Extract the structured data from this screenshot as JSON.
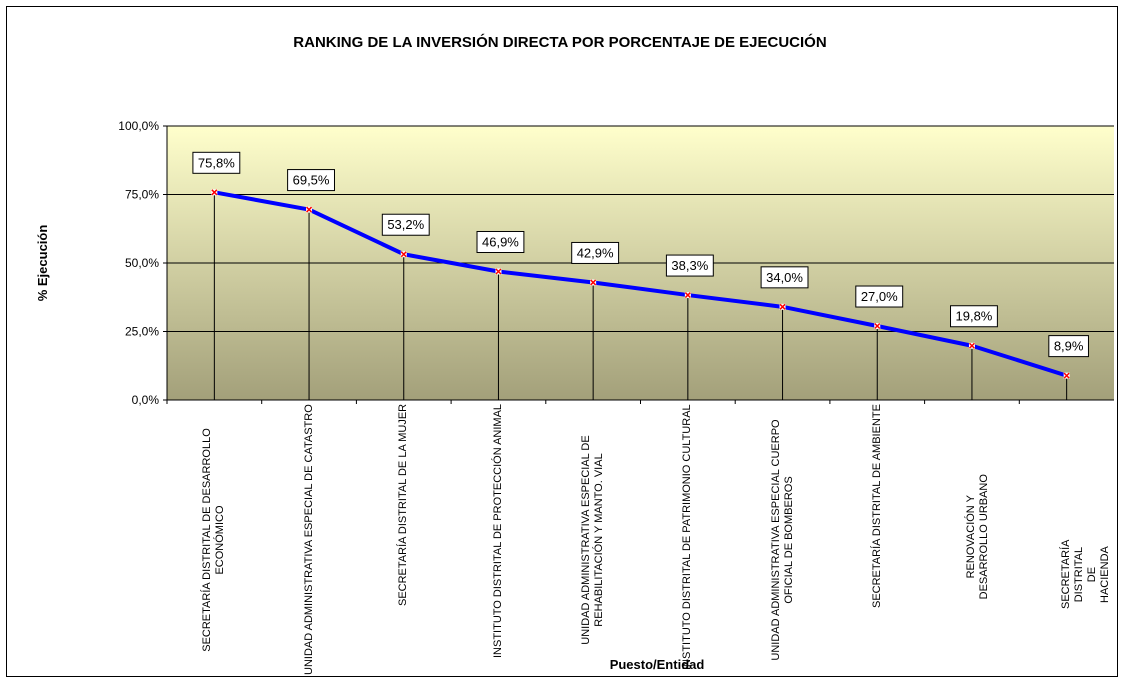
{
  "chart_data": {
    "type": "line",
    "title": "RANKING DE LA INVERSIÓN DIRECTA POR PORCENTAJE DE EJECUCIÓN",
    "y_label": "% Ejecución",
    "x_label": "Puesto/Entidad",
    "categories": [
      "SECRETARÍA DISTRITAL DE DESARROLLO ECONÓMICO",
      "UNIDAD ADMINISTRATIVA ESPECIAL DE CATASTRO",
      "SECRETARÍA DISTRITAL DE LA MUJER",
      "INSTITUTO DISTRITAL DE PROTECCIÓN ANIMAL",
      "UNIDAD ADMINISTRATIVA ESPECIAL DE REHABILITACIÓN Y MANTO. VIAL",
      "INSTITUTO DISTRITAL DE PATRIMONIO CULTURAL",
      "UNIDAD ADMINISTRATIVA ESPECIAL CUERPO OFICIAL DE BOMBEROS",
      "SECRETARÍA DISTRITAL DE AMBIENTE",
      "RENOVACIÓN Y DESARROLLO URBANO",
      "SECRETARÍA DISTRITAL DE HACIENDA"
    ],
    "values": [
      75.8,
      69.5,
      53.2,
      46.9,
      42.9,
      38.3,
      34.0,
      27.0,
      19.8,
      8.9
    ],
    "value_labels": [
      "75,8%",
      "69,5%",
      "53,2%",
      "46,9%",
      "42,9%",
      "38,3%",
      "34,0%",
      "27,0%",
      "19,8%",
      "8,9%"
    ],
    "color": "#0000ff",
    "marker_color": "#ff0000",
    "ylim": [
      0,
      100
    ],
    "yticks": [
      {
        "value": 0,
        "label": "0,0%"
      },
      {
        "value": 25,
        "label": "25,0%"
      },
      {
        "value": 50,
        "label": "50,0%"
      },
      {
        "value": 75,
        "label": "75,0%"
      },
      {
        "value": 100,
        "label": "100,0%"
      }
    ],
    "grid": true,
    "drop_lines": true
  }
}
